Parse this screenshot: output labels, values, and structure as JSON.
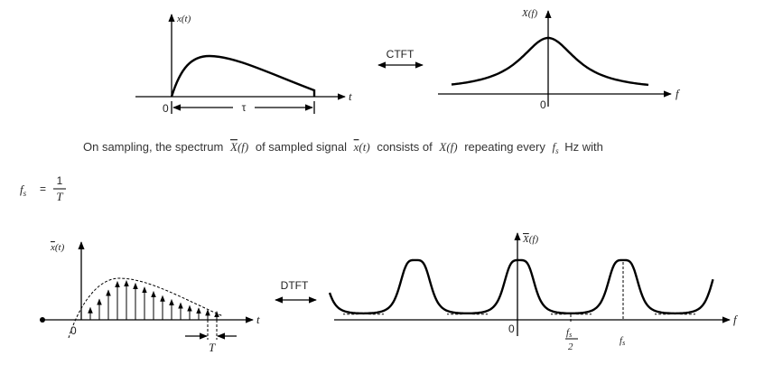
{
  "top_left": {
    "y_label": "x(t)",
    "origin": "0",
    "width_label": "τ",
    "x_label": "t"
  },
  "transform_top": "CTFT",
  "top_right": {
    "y_label": "X(f)",
    "origin": "0",
    "x_label": "f"
  },
  "sentence": {
    "part1": "On sampling, the spectrum",
    "spectrum_symbol": "X",
    "spectrum_arg": "(f)",
    "part2": "of sampled signal",
    "signal_symbol": "x",
    "signal_arg": "(t)",
    "part3": "consists of",
    "orig_spectrum": "X(f)",
    "part4": "repeating every",
    "freq_symbol": "f",
    "freq_sub": "s",
    "part5": "Hz with"
  },
  "formula": {
    "lhs": "f",
    "lhs_sub": "s",
    "equals": "=",
    "numerator": "1",
    "denominator": "T"
  },
  "bottom_left": {
    "y_symbol": "x",
    "y_arg": "(t)",
    "origin": "0",
    "period_label": "T",
    "x_label": "t"
  },
  "transform_bottom": "DTFT",
  "bottom_right": {
    "y_symbol": "X",
    "y_arg": "(f)",
    "origin": "0",
    "half_num": "f",
    "half_num_sub": "s",
    "half_den": "2",
    "fs": "f",
    "fs_sub": "s",
    "x_label": "f"
  }
}
